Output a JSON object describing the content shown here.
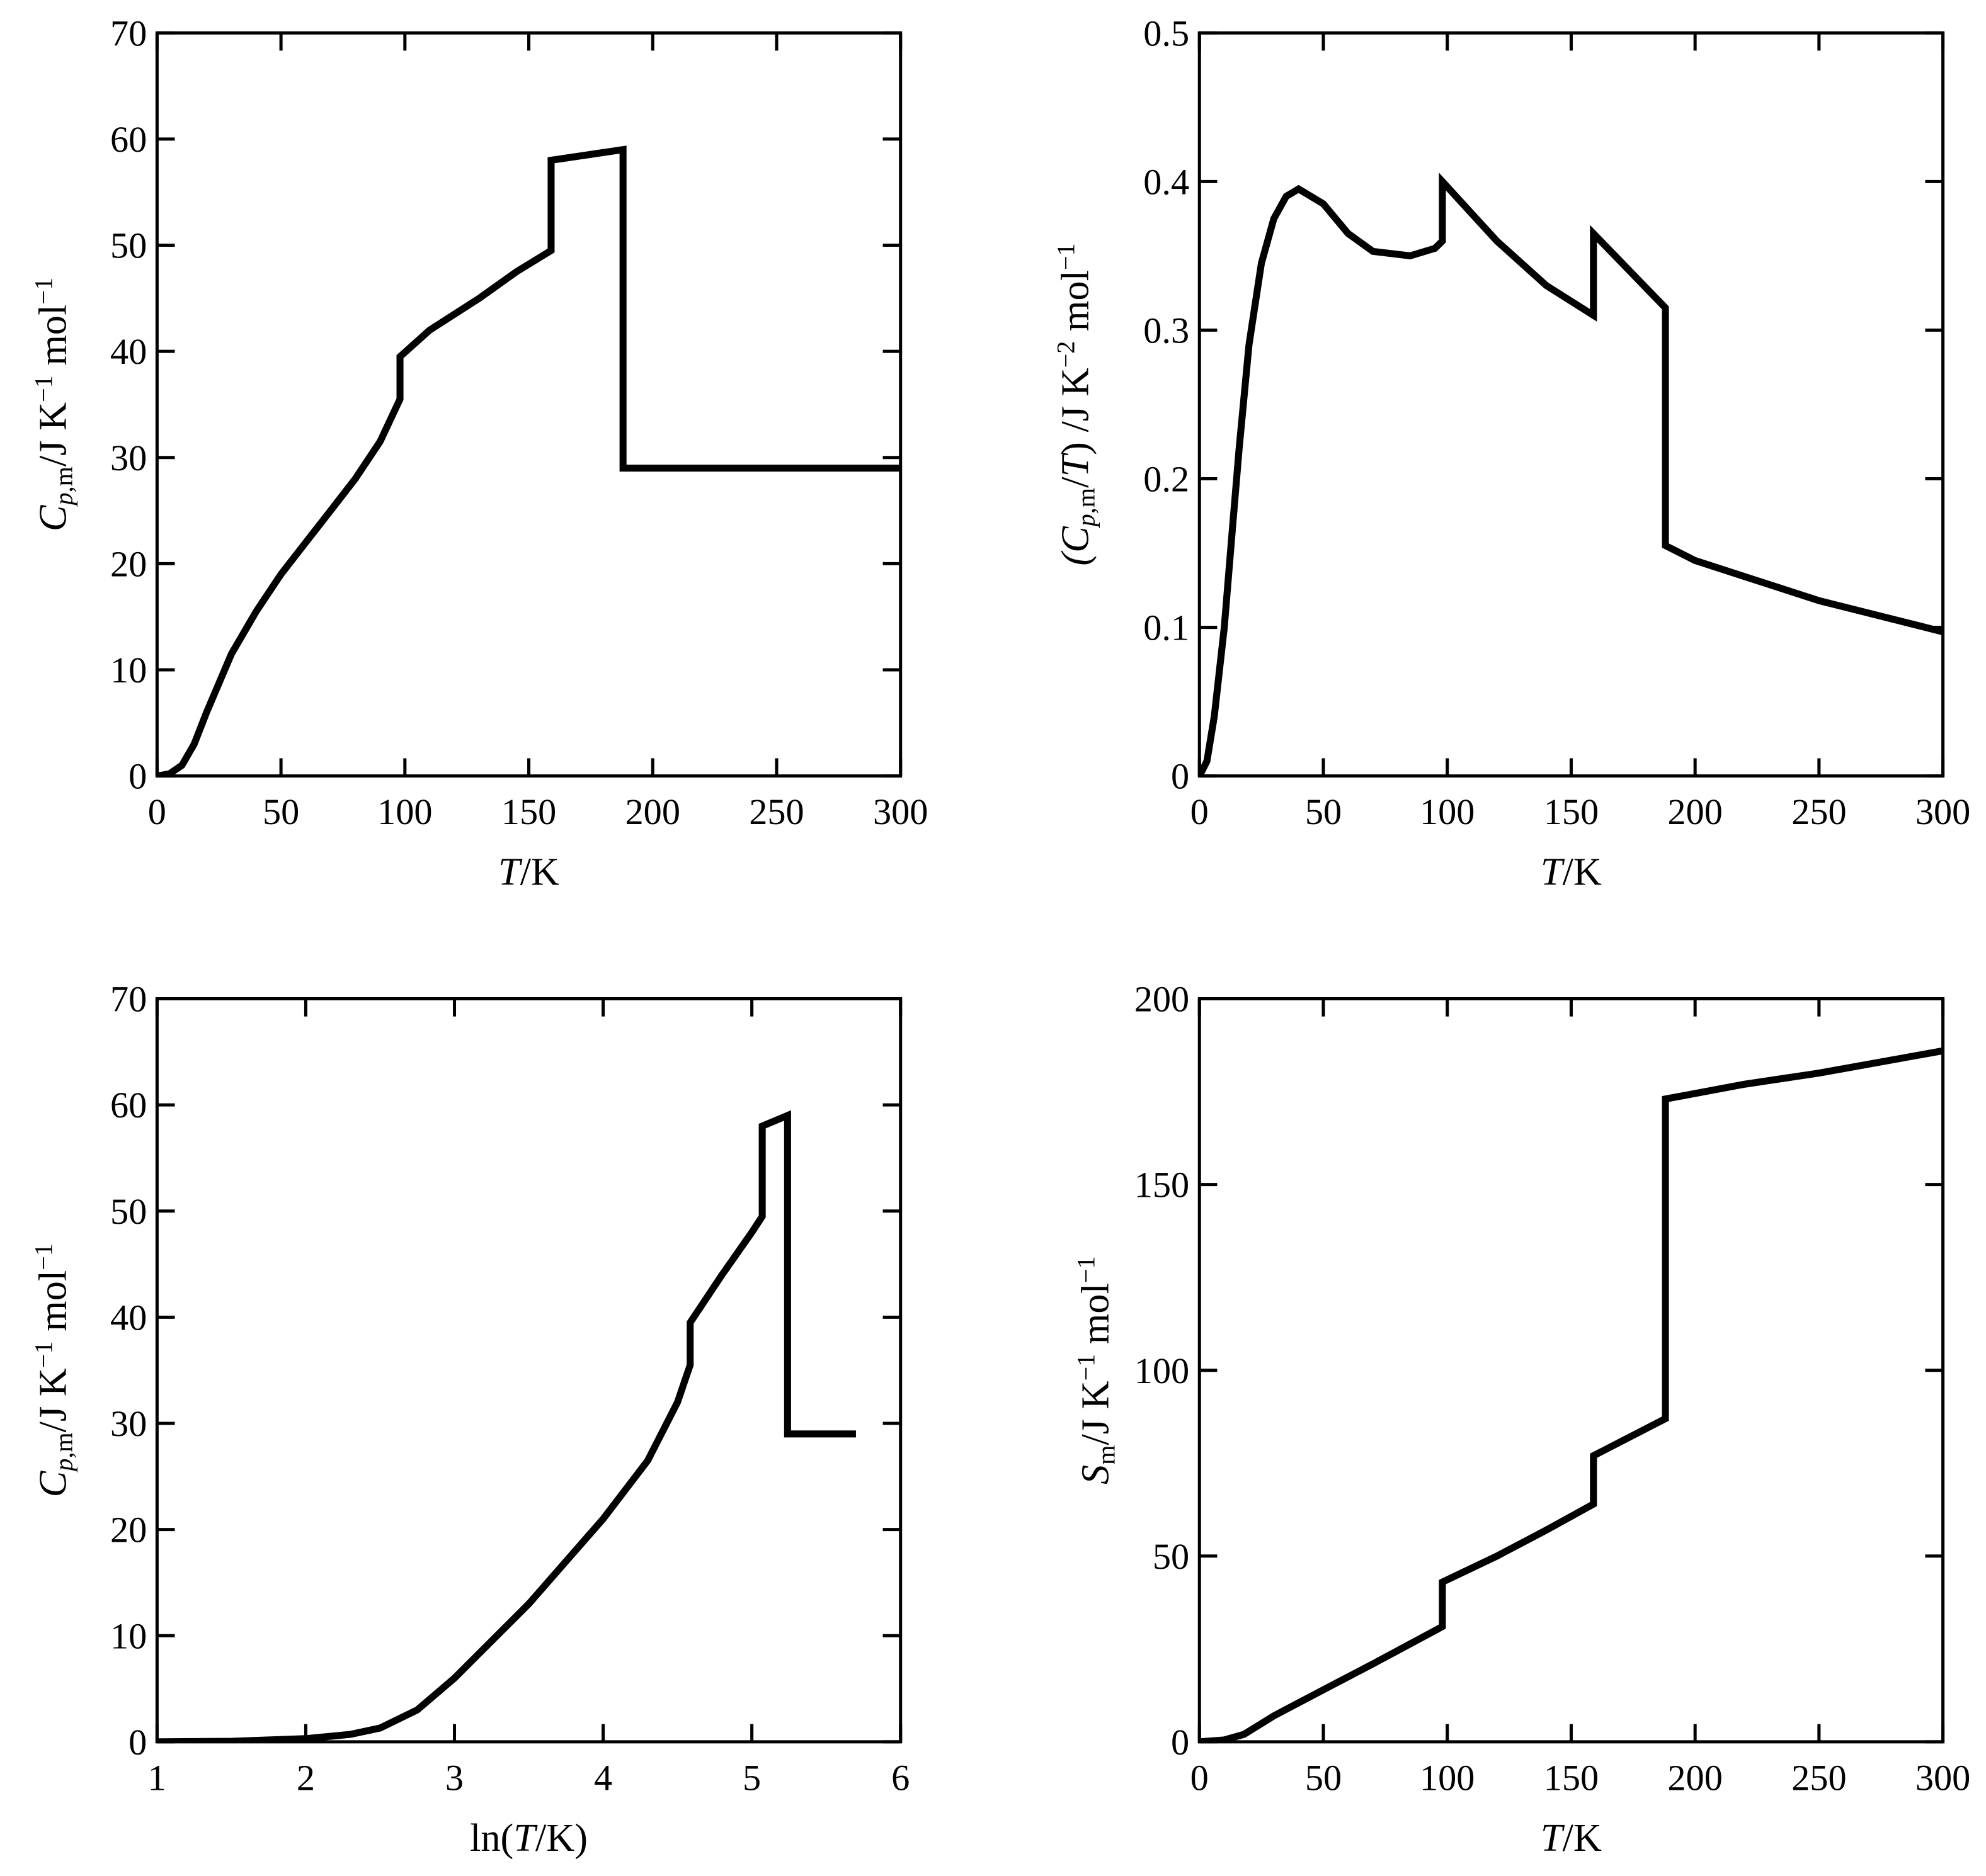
{
  "chart_data": [
    {
      "type": "line",
      "id": "cp-vs-T",
      "xlabel": [
        {
          "t": "T",
          "s": "i"
        },
        {
          "t": "/K",
          "s": "n"
        }
      ],
      "ylabel": [
        {
          "t": "C",
          "s": "i"
        },
        {
          "t": "p",
          "s": "subi"
        },
        {
          "t": ",m",
          "s": "sub"
        },
        {
          "t": "/J K",
          "s": "n"
        },
        {
          "t": "−1",
          "s": "sup"
        },
        {
          "t": " mol",
          "s": "n"
        },
        {
          "t": "−1",
          "s": "sup"
        }
      ],
      "xlim": [
        0,
        300
      ],
      "ylim": [
        0,
        70
      ],
      "xticks": [
        0,
        50,
        100,
        150,
        200,
        250,
        300
      ],
      "yticks": [
        0,
        10,
        20,
        30,
        40,
        50,
        60,
        70
      ],
      "xticklabels": [
        "0",
        "50",
        "100",
        "150",
        "200",
        "250",
        "300"
      ],
      "yticklabels": [
        "0",
        "10",
        "20",
        "30",
        "40",
        "50",
        "60",
        "70"
      ],
      "x": [
        0,
        5,
        10,
        15,
        20,
        30,
        40,
        50,
        60,
        70,
        80,
        90,
        98,
        98,
        110,
        130,
        145,
        159,
        159,
        188,
        188,
        300
      ],
      "y": [
        0,
        0.2,
        1,
        3,
        6,
        11.5,
        15.5,
        19,
        22,
        25,
        28,
        31.5,
        35.5,
        39.5,
        42,
        45,
        47.5,
        49.5,
        58,
        59,
        29,
        29
      ]
    },
    {
      "type": "line",
      "id": "cp-over-T-vs-T",
      "xlabel": [
        {
          "t": "T",
          "s": "i"
        },
        {
          "t": "/K",
          "s": "n"
        }
      ],
      "ylabel": [
        {
          "t": "(C",
          "s": "i"
        },
        {
          "t": "p",
          "s": "subi"
        },
        {
          "t": ",m",
          "s": "sub"
        },
        {
          "t": "/",
          "s": "n"
        },
        {
          "t": "T",
          "s": "i"
        },
        {
          "t": ") /J K",
          "s": "n"
        },
        {
          "t": "−2",
          "s": "sup"
        },
        {
          "t": " mol",
          "s": "n"
        },
        {
          "t": "−1",
          "s": "sup"
        }
      ],
      "xlim": [
        0,
        300
      ],
      "ylim": [
        0,
        0.5
      ],
      "xticks": [
        0,
        50,
        100,
        150,
        200,
        250,
        300
      ],
      "yticks": [
        0,
        0.1,
        0.2,
        0.3,
        0.4,
        0.5
      ],
      "xticklabels": [
        "0",
        "50",
        "100",
        "150",
        "200",
        "250",
        "300"
      ],
      "yticklabels": [
        "0",
        "0.1",
        "0.2",
        "0.3",
        "0.4",
        "0.5"
      ],
      "x": [
        0,
        3,
        6,
        10,
        13,
        16,
        20,
        25,
        30,
        35,
        40,
        50,
        60,
        70,
        85,
        95,
        98,
        98,
        120,
        140,
        159,
        159,
        188,
        188,
        200,
        250,
        300
      ],
      "y": [
        0,
        0.01,
        0.04,
        0.1,
        0.16,
        0.22,
        0.29,
        0.345,
        0.375,
        0.39,
        0.395,
        0.385,
        0.365,
        0.353,
        0.35,
        0.355,
        0.36,
        0.4,
        0.36,
        0.33,
        0.31,
        0.365,
        0.315,
        0.155,
        0.145,
        0.118,
        0.097
      ]
    },
    {
      "type": "line",
      "id": "cp-vs-lnT",
      "xlabel": [
        {
          "t": "ln(",
          "s": "n"
        },
        {
          "t": "T",
          "s": "i"
        },
        {
          "t": "/K)",
          "s": "n"
        }
      ],
      "ylabel": [
        {
          "t": "C",
          "s": "i"
        },
        {
          "t": "p",
          "s": "subi"
        },
        {
          "t": ",m",
          "s": "sub"
        },
        {
          "t": "/J K",
          "s": "n"
        },
        {
          "t": "−1",
          "s": "sup"
        },
        {
          "t": " mol",
          "s": "n"
        },
        {
          "t": "−1",
          "s": "sup"
        }
      ],
      "xlim": [
        1,
        6
      ],
      "ylim": [
        0,
        70
      ],
      "xticks": [
        1,
        2,
        3,
        4,
        5,
        6
      ],
      "yticks": [
        0,
        10,
        20,
        30,
        40,
        50,
        60,
        70
      ],
      "xticklabels": [
        "1",
        "2",
        "3",
        "4",
        "5",
        "6"
      ],
      "yticklabels": [
        "0",
        "10",
        "20",
        "30",
        "40",
        "50",
        "60",
        "70"
      ],
      "x": [
        1,
        1.5,
        2,
        2.3,
        2.5,
        2.75,
        3,
        3.5,
        4,
        4.3,
        4.5,
        4.585,
        4.585,
        4.8,
        5.0,
        5.07,
        5.07,
        5.24,
        5.24,
        5.7
      ],
      "y": [
        0,
        0.05,
        0.3,
        0.7,
        1.3,
        3,
        6,
        13,
        21,
        26.5,
        32,
        35.5,
        39.5,
        44,
        48,
        49.5,
        58,
        59,
        29,
        29
      ]
    },
    {
      "type": "line",
      "id": "S-vs-T",
      "xlabel": [
        {
          "t": "T",
          "s": "i"
        },
        {
          "t": "/K",
          "s": "n"
        }
      ],
      "ylabel": [
        {
          "t": "S",
          "s": "i"
        },
        {
          "t": "m",
          "s": "sub"
        },
        {
          "t": "/J K",
          "s": "n"
        },
        {
          "t": "−1",
          "s": "sup"
        },
        {
          "t": " mol",
          "s": "n"
        },
        {
          "t": "−1",
          "s": "sup"
        }
      ],
      "xlim": [
        0,
        300
      ],
      "ylim": [
        0,
        200
      ],
      "xticks": [
        0,
        50,
        100,
        150,
        200,
        250,
        300
      ],
      "yticks": [
        0,
        50,
        100,
        150,
        200
      ],
      "xticklabels": [
        "0",
        "50",
        "100",
        "150",
        "200",
        "250",
        "300"
      ],
      "yticklabels": [
        "0",
        "50",
        "100",
        "150",
        "200"
      ],
      "x": [
        0,
        10,
        18,
        30,
        50,
        70,
        98,
        98,
        120,
        140,
        159,
        159,
        188,
        188,
        220,
        250,
        300
      ],
      "y": [
        0,
        0.5,
        2,
        7,
        14,
        21,
        31,
        43,
        50,
        57,
        64,
        77,
        87,
        173,
        177,
        180,
        186
      ]
    }
  ]
}
